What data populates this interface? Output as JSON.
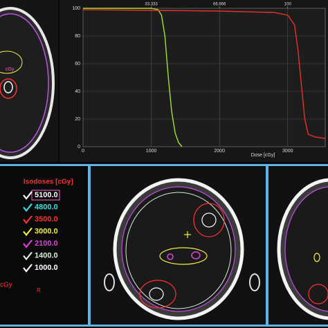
{
  "chart_data": {
    "type": "line",
    "xlabel": "Dose [cGy]",
    "xlim": [
      0,
      3550
    ],
    "ylim": [
      0,
      100
    ],
    "xticks": [
      0,
      1000,
      2000,
      3000
    ],
    "yticks": [
      0,
      20,
      40,
      60,
      80,
      100
    ],
    "top_ticks": [
      {
        "value": 1000,
        "label": "33.333"
      },
      {
        "value": 2000,
        "label": "66.666"
      },
      {
        "value": 3000,
        "label": "100"
      }
    ],
    "grid": true,
    "series": [
      {
        "color": "#a6e22e",
        "x": [
          0,
          1000,
          1100,
          1150,
          1200,
          1250,
          1300,
          1350,
          1400,
          1450
        ],
        "values": [
          100,
          100,
          99,
          95,
          80,
          50,
          25,
          10,
          3,
          0
        ]
      },
      {
        "color": "#e8322b",
        "x": [
          0,
          1000,
          2000,
          2800,
          3000,
          3100,
          3150,
          3200,
          3250,
          3300,
          3400,
          3550
        ],
        "values": [
          99,
          98.5,
          98,
          97,
          95,
          88,
          70,
          45,
          20,
          9,
          7,
          6
        ]
      }
    ]
  },
  "isodoses": {
    "title": "Isodoses [cGy]",
    "items": [
      {
        "label": "5100.0",
        "color": "#ffffff",
        "box": "#ff66cc"
      },
      {
        "label": "4800.0",
        "color": "#35e0e0"
      },
      {
        "label": "3500.0",
        "color": "#ff3030"
      },
      {
        "label": "3000.0",
        "color": "#f0f040"
      },
      {
        "label": "2100.0",
        "color": "#e040e0"
      },
      {
        "label": "1400.0",
        "color": "#d8f0d8"
      },
      {
        "label": "1000.0",
        "color": "#ffffff"
      }
    ]
  },
  "annotations": {
    "top_unit": "cGy",
    "left_unit": "cGy",
    "orientation": "R"
  }
}
